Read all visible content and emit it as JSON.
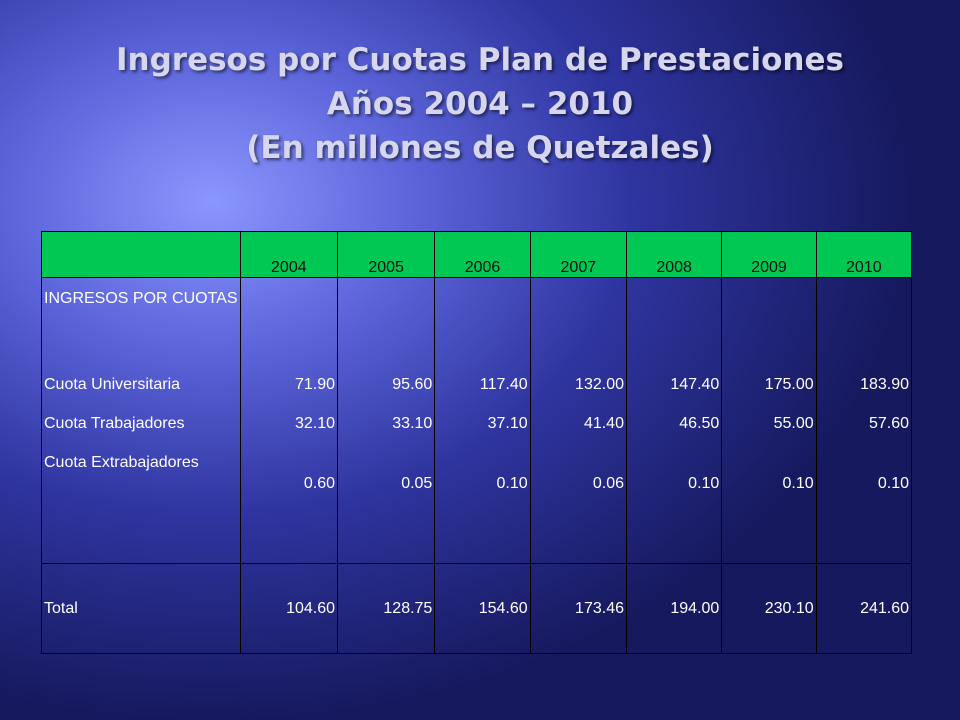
{
  "title": {
    "line1": "Ingresos por Cuotas Plan de Prestaciones",
    "line2": "Años 2004 – 2010",
    "line3": "(En millones de Quetzales)"
  },
  "table": {
    "headers": [
      "",
      "2004",
      "2005",
      "2006",
      "2007",
      "2008",
      "2009",
      "2010"
    ],
    "section_label": "INGRESOS  POR CUOTAS",
    "rows": [
      {
        "label": "Cuota Universitaria",
        "values": [
          "71.90",
          "95.60",
          "117.40",
          "132.00",
          "147.40",
          "175.00",
          "183.90"
        ]
      },
      {
        "label": "Cuota Trabajadores",
        "values": [
          "32.10",
          "33.10",
          "37.10",
          "41.40",
          "46.50",
          "55.00",
          "57.60"
        ]
      },
      {
        "label": "Cuota Extrabajadores",
        "values": [
          "0.60",
          "0.05",
          "0.10",
          "0.06",
          "0.10",
          "0.10",
          "0.10"
        ]
      }
    ],
    "total": {
      "label": "Total",
      "values": [
        "104.60",
        "128.75",
        "154.60",
        "173.46",
        "194.00",
        "230.10",
        "241.60"
      ]
    }
  },
  "colors": {
    "header_bg": "#00c853",
    "background_center": "#8b96ff",
    "background_edge": "#16195e"
  }
}
